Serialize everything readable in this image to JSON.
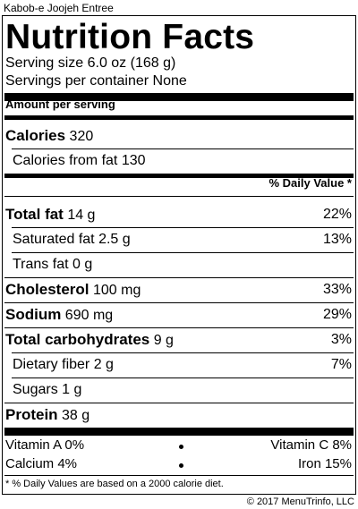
{
  "product_name": "Kabob-e Joojeh Entree",
  "header": {
    "title": "Nutrition Facts",
    "serving_size": "Serving size 6.0 oz (168 g)",
    "servings_per_container": "Servings per container None"
  },
  "amount_per_serving": "Amount per serving",
  "calories": {
    "label": "Calories",
    "value": "320"
  },
  "calories_from_fat": {
    "label": "Calories from fat",
    "value": "130"
  },
  "daily_value_header": "% Daily Value *",
  "nutrients": {
    "total_fat": {
      "label": "Total fat",
      "amount": "14 g",
      "dv": "22%"
    },
    "saturated_fat": {
      "label": "Saturated fat",
      "amount": "2.5 g",
      "dv": "13%"
    },
    "trans_fat": {
      "label": "Trans fat",
      "amount": "0 g",
      "dv": ""
    },
    "cholesterol": {
      "label": "Cholesterol",
      "amount": "100 mg",
      "dv": "33%"
    },
    "sodium": {
      "label": "Sodium",
      "amount": "690 mg",
      "dv": "29%"
    },
    "total_carbohydrates": {
      "label": "Total carbohydrates",
      "amount": "9 g",
      "dv": "3%"
    },
    "dietary_fiber": {
      "label": "Dietary fiber",
      "amount": "2 g",
      "dv": "7%"
    },
    "sugars": {
      "label": "Sugars",
      "amount": "1 g",
      "dv": ""
    },
    "protein": {
      "label": "Protein",
      "amount": "38 g",
      "dv": ""
    }
  },
  "vitamins": {
    "vitamin_a": "Vitamin A 0%",
    "vitamin_c": "Vitamin C 8%",
    "calcium": "Calcium 4%",
    "iron": "Iron 15%"
  },
  "footnote": "* % Daily Values are based on a 2000 calorie diet.",
  "copyright": "© 2017 MenuTrinfo, LLC"
}
